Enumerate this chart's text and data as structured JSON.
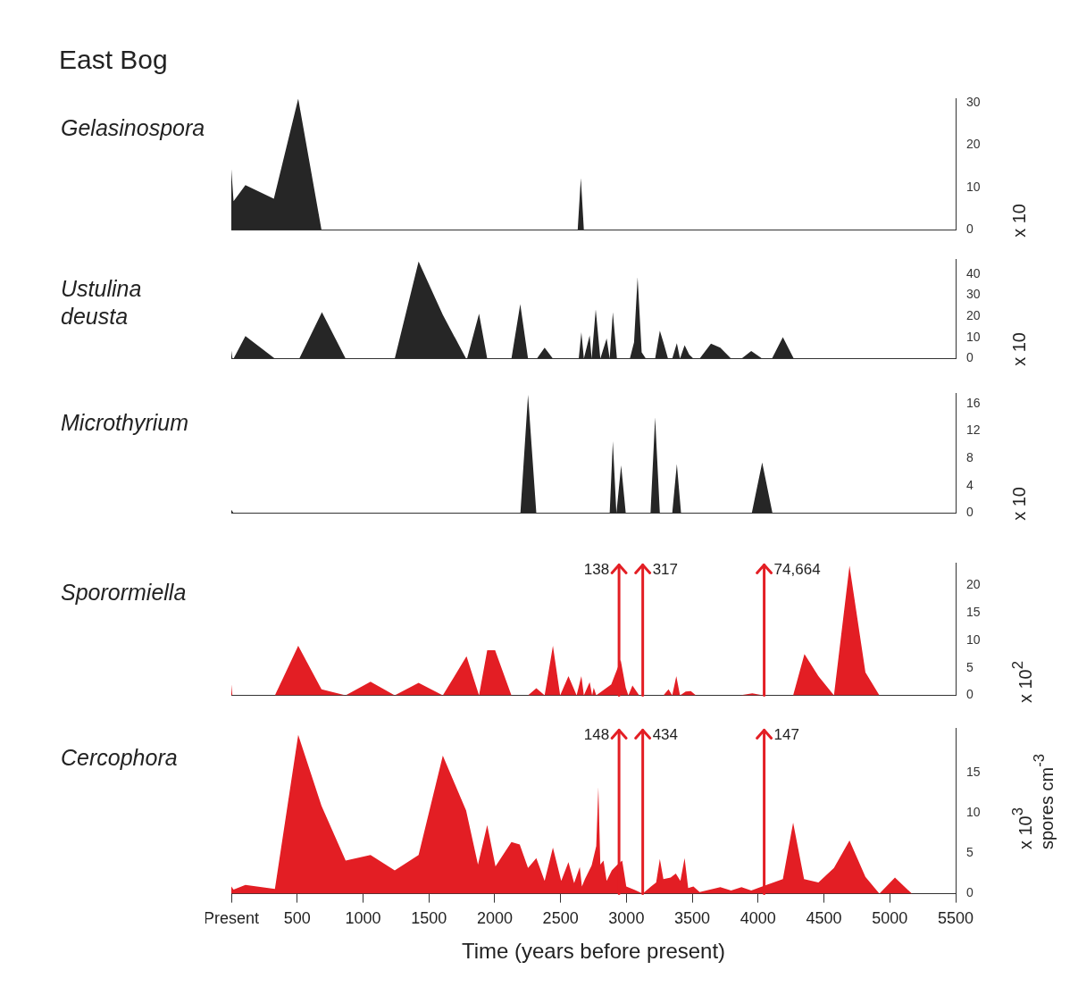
{
  "chart_data": [
    {
      "type": "area",
      "title": "East Bog",
      "ylabel": "Gelasinospora",
      "y2label": "x 10",
      "color": "#262626",
      "xlim": [
        0,
        5500
      ],
      "ylim": [
        0,
        31
      ],
      "yticks": [
        0,
        10,
        20,
        30
      ],
      "tick_labels": "y",
      "x": [
        0,
        17,
        107,
        323,
        508,
        685,
        2630,
        2654,
        2677,
        5500
      ],
      "values": [
        14.4,
        6.8,
        10.6,
        7.4,
        31,
        0,
        0,
        12.3,
        0,
        0
      ]
    },
    {
      "type": "area",
      "ylabel": "Ustulina deusta",
      "y2label": "x 10",
      "color": "#262626",
      "xlim": [
        0,
        5500
      ],
      "ylim": [
        0,
        47
      ],
      "yticks": [
        0,
        10,
        20,
        30,
        40
      ],
      "tick_labels": "y",
      "x": [
        0,
        9,
        17,
        107,
        331,
        516,
        688,
        868,
        1241,
        1422,
        1606,
        1783,
        1790,
        1881,
        1943,
        2127,
        2194,
        2253,
        2320,
        2379,
        2442,
        2638,
        2658,
        2677,
        2721,
        2736,
        2767,
        2802,
        2850,
        2873,
        2897,
        2928,
        3026,
        3058,
        3085,
        3116,
        3148,
        3218,
        3254,
        3281,
        3316,
        3348,
        3383,
        3407,
        3442,
        3477,
        3509,
        3556,
        3642,
        3713,
        3795,
        3874,
        3948,
        4031,
        4105,
        4188,
        4271,
        5500
      ],
      "values": [
        3.8,
        0,
        0,
        10.7,
        0,
        0,
        22,
        0,
        0,
        46,
        20.8,
        0,
        0,
        21.3,
        0,
        0,
        25.8,
        0,
        0,
        5.2,
        0,
        0,
        12.5,
        0,
        11,
        0,
        23.4,
        0,
        9.5,
        0,
        22,
        0,
        0,
        7.8,
        38.6,
        3,
        0,
        0,
        13.3,
        7.8,
        0,
        0,
        7.3,
        0,
        6.4,
        1.9,
        0,
        0,
        7.1,
        5.2,
        0,
        0,
        3.6,
        0,
        0,
        10.2,
        0,
        0
      ]
    },
    {
      "type": "area",
      "ylabel": "Microthyrium",
      "y2label": "x 10",
      "color": "#262626",
      "xlim": [
        0,
        5500
      ],
      "ylim": [
        0,
        17.5
      ],
      "yticks": [
        0,
        4,
        8,
        12,
        16
      ],
      "tick_labels": "y",
      "x": [
        0,
        17,
        2195,
        2253,
        2316,
        2873,
        2897,
        2924,
        2960,
        2995,
        3183,
        3218,
        3254,
        3348,
        3383,
        3415,
        3952,
        4031,
        4109,
        5500
      ],
      "values": [
        0.5,
        0,
        0,
        17.3,
        0,
        0,
        10.5,
        0,
        7,
        0,
        0,
        14,
        0,
        0,
        7.2,
        0,
        0,
        7.4,
        0,
        0
      ]
    },
    {
      "type": "area",
      "ylabel": "Sporormiella",
      "y2label": "x 10$^{2}$",
      "color": "#e31e24",
      "xlim": [
        0,
        5500
      ],
      "ylim": [
        0,
        24
      ],
      "yticks": [
        0,
        5,
        10,
        15,
        20
      ],
      "tick_labels": "y",
      "x": [
        0,
        8,
        331,
        508,
        685,
        868,
        1057,
        1241,
        1422,
        1606,
        1786,
        1881,
        1943,
        2003,
        2127,
        2253,
        2316,
        2379,
        2442,
        2497,
        2560,
        2622,
        2658,
        2677,
        2721,
        2740,
        2752,
        2771,
        2885,
        2940,
        2956,
        2995,
        3015,
        3046,
        3097,
        3281,
        3320,
        3348,
        3379,
        3407,
        3450,
        3489,
        3528,
        3862,
        3956,
        4038,
        4266,
        4352,
        4458,
        4576,
        4694,
        4815,
        4921,
        5500
      ],
      "values": [
        2,
        0,
        0,
        9,
        1.1,
        0,
        2.5,
        0,
        2.3,
        0,
        7.1,
        0,
        8.2,
        8.2,
        0,
        0,
        1.3,
        0,
        9,
        0,
        3.5,
        0,
        3.5,
        0,
        2.4,
        0,
        1.4,
        0,
        2,
        5.4,
        6.5,
        1.4,
        0,
        1.8,
        0,
        0,
        1.1,
        0,
        3.5,
        0,
        0.7,
        0.8,
        0,
        0,
        0.4,
        0,
        0,
        7.5,
        3.5,
        0,
        23.5,
        4.2,
        0,
        0
      ],
      "annotations": [
        "138",
        "317",
        "74,664"
      ],
      "ref_lines": [
        {
          "axis": "x",
          "value": 2944,
          "color": "#e31e24"
        },
        {
          "axis": "x",
          "value": 3124,
          "color": "#e31e24"
        },
        {
          "axis": "x",
          "value": 4046,
          "color": "#e31e24"
        }
      ]
    },
    {
      "type": "area",
      "ylabel": "Cercophora",
      "y2label": "x 10$^{3}$",
      "xlabel": "Time (years before present)",
      "color": "#e31e24",
      "xlim": [
        0,
        5500
      ],
      "ylim": [
        0,
        20.5
      ],
      "yticks": [
        0,
        5,
        10,
        15
      ],
      "xticks": [
        {
          "value": 0,
          "label": "Present"
        },
        500,
        1000,
        1500,
        2000,
        2500,
        3000,
        3500,
        4000,
        4500,
        5000,
        5500
      ],
      "x": [
        0,
        17,
        107,
        331,
        508,
        685,
        868,
        1057,
        1241,
        1422,
        1606,
        1783,
        1873,
        1943,
        2006,
        2127,
        2190,
        2253,
        2316,
        2379,
        2442,
        2505,
        2560,
        2603,
        2646,
        2662,
        2685,
        2736,
        2771,
        2787,
        2802,
        2826,
        2850,
        2889,
        2932,
        2968,
        2999,
        3058,
        3124,
        3187,
        3226,
        3254,
        3281,
        3336,
        3375,
        3410,
        3442,
        3469,
        3509,
        3556,
        3713,
        3795,
        3874,
        3948,
        4031,
        4188,
        4266,
        4349,
        4458,
        4576,
        4694,
        4815,
        4921,
        5039,
        5168,
        5500
      ],
      "values": [
        0.9,
        0.5,
        1.1,
        0.6,
        19.7,
        10.9,
        4.1,
        4.8,
        2.9,
        4.8,
        17.1,
        10.3,
        3.6,
        8.5,
        3.4,
        6.4,
        6.1,
        3.2,
        4.4,
        1.6,
        5.7,
        1.6,
        3.9,
        1.3,
        3.3,
        0.9,
        1.8,
        3.5,
        5.9,
        13.2,
        3.6,
        4.1,
        1.6,
        2.9,
        3.6,
        4.1,
        0.9,
        0.5,
        0,
        0.9,
        1.4,
        4.3,
        1.8,
        2,
        2.5,
        1.6,
        4.4,
        0.7,
        0.9,
        0.2,
        0.8,
        0.4,
        0.8,
        0.4,
        0.9,
        1.8,
        8.8,
        1.8,
        1.4,
        3.2,
        6.6,
        2.1,
        0,
        2,
        0,
        0
      ],
      "annotations": [
        "148",
        "434",
        "147",
        "spores cm$^{-3}$"
      ],
      "ref_lines": [
        {
          "axis": "x",
          "value": 2944,
          "color": "#e31e24"
        },
        {
          "axis": "x",
          "value": 3124,
          "color": "#e31e24"
        },
        {
          "axis": "x",
          "value": 4046,
          "color": "#e31e24"
        }
      ]
    }
  ]
}
